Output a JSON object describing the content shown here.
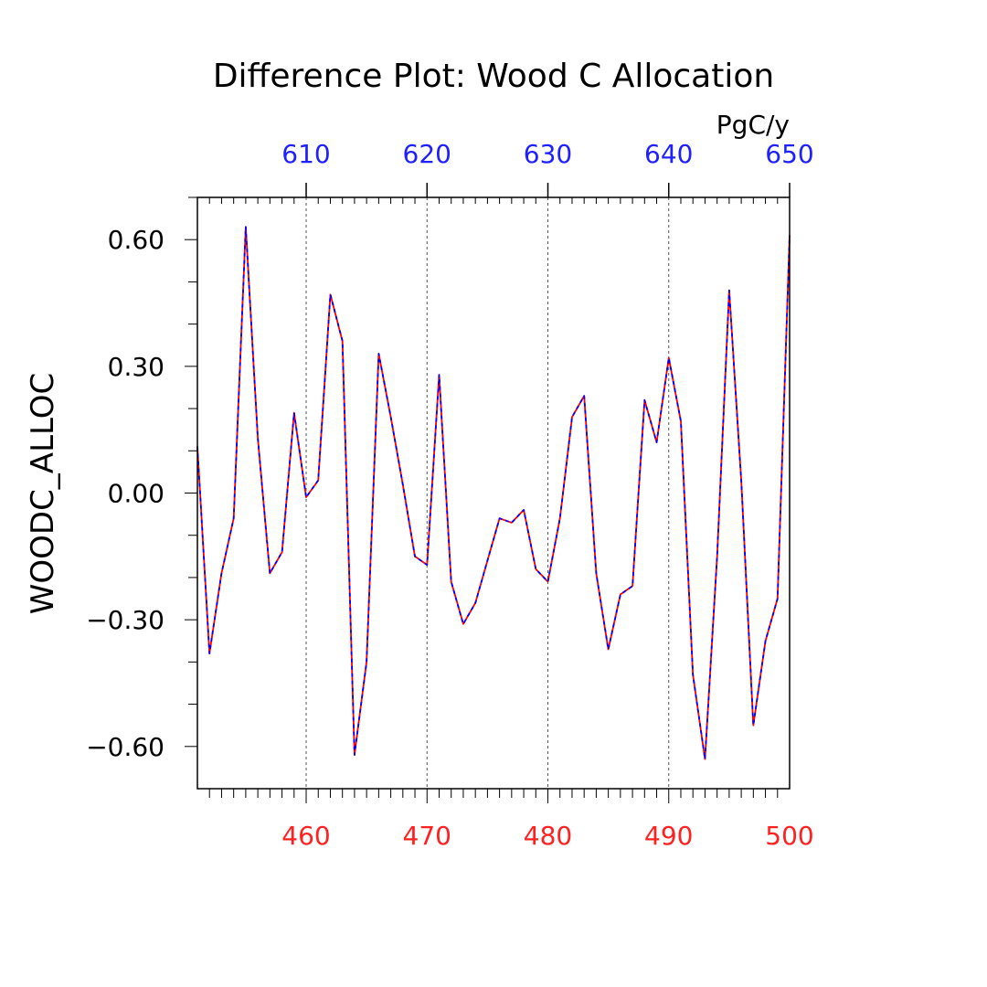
{
  "chart_data": {
    "type": "line",
    "title": "Difference Plot: Wood C Allocation",
    "units": "PgC/y",
    "ylabel": "WOODC_ALLOC",
    "xlabel": "",
    "ylim": [
      -0.7,
      0.7
    ],
    "y_ticks": [
      -0.6,
      -0.3,
      0.0,
      0.3,
      0.6
    ],
    "y_tick_labels": [
      "−0.60",
      "−0.30",
      "0.00",
      "0.30",
      "0.60"
    ],
    "y_minor_step": 0.1,
    "bottom_axis": {
      "range": [
        451,
        500
      ],
      "ticks": [
        460,
        470,
        480,
        490,
        500
      ],
      "tick_labels": [
        "460",
        "470",
        "480",
        "490",
        "500"
      ],
      "color": "#ff2020"
    },
    "top_axis": {
      "range": [
        601,
        650
      ],
      "ticks": [
        610,
        620,
        630,
        640,
        650
      ],
      "tick_labels": [
        "610",
        "620",
        "630",
        "640",
        "650"
      ],
      "color": "#2020ff"
    },
    "grid": "vertical dashed at major ticks",
    "x": [
      451,
      452,
      453,
      454,
      455,
      456,
      457,
      458,
      459,
      460,
      461,
      462,
      463,
      464,
      465,
      466,
      467,
      468,
      469,
      470,
      471,
      472,
      473,
      474,
      475,
      476,
      477,
      478,
      479,
      480,
      481,
      482,
      483,
      484,
      485,
      486,
      487,
      488,
      489,
      490,
      491,
      492,
      493,
      494,
      495,
      496,
      497,
      498,
      499,
      500
    ],
    "series": [
      {
        "color": "#ff0000",
        "style": "solid",
        "values": [
          0.11,
          -0.38,
          -0.19,
          -0.06,
          0.63,
          0.13,
          -0.19,
          -0.14,
          0.19,
          -0.01,
          0.03,
          0.47,
          0.36,
          -0.62,
          -0.4,
          0.33,
          0.18,
          0.02,
          -0.15,
          -0.17,
          0.28,
          -0.21,
          -0.31,
          -0.26,
          -0.16,
          -0.06,
          -0.07,
          -0.04,
          -0.18,
          -0.21,
          -0.06,
          0.18,
          0.23,
          -0.19,
          -0.37,
          -0.24,
          -0.22,
          0.22,
          0.12,
          0.32,
          0.17,
          -0.43,
          -0.63,
          -0.15,
          0.48,
          0.03,
          -0.55,
          -0.35,
          -0.25,
          0.61
        ]
      },
      {
        "color": "#0000ff",
        "style": "dashed",
        "values": [
          0.11,
          -0.38,
          -0.19,
          -0.06,
          0.63,
          0.13,
          -0.19,
          -0.14,
          0.19,
          -0.01,
          0.03,
          0.47,
          0.36,
          -0.62,
          -0.4,
          0.33,
          0.18,
          0.02,
          -0.15,
          -0.17,
          0.28,
          -0.21,
          -0.31,
          -0.26,
          -0.16,
          -0.06,
          -0.07,
          -0.04,
          -0.18,
          -0.21,
          -0.06,
          0.18,
          0.23,
          -0.19,
          -0.37,
          -0.24,
          -0.22,
          0.22,
          0.12,
          0.32,
          0.17,
          -0.43,
          -0.63,
          -0.15,
          0.48,
          0.03,
          -0.55,
          -0.35,
          -0.25,
          0.61
        ]
      }
    ]
  }
}
